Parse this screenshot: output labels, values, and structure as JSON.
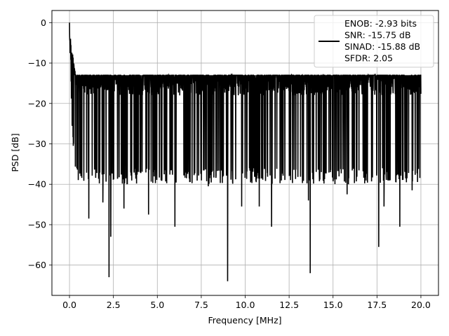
{
  "chart_data": {
    "type": "line",
    "title": "",
    "xlabel": "Frequency [MHz]",
    "ylabel": "PSD [dB]",
    "xlim": [
      -1.0,
      21.0
    ],
    "ylim": [
      -67.5,
      3.0
    ],
    "xticks": [
      0.0,
      2.5,
      5.0,
      7.5,
      10.0,
      12.5,
      15.0,
      17.5,
      20.0
    ],
    "xtick_labels": [
      "0.0",
      "2.5",
      "5.0",
      "7.5",
      "10.0",
      "12.5",
      "15.0",
      "17.5",
      "20.0"
    ],
    "yticks": [
      0,
      -10,
      -20,
      -30,
      -40,
      -50,
      -60
    ],
    "ytick_labels": [
      "0",
      "−10",
      "−20",
      "−30",
      "−40",
      "−50",
      "−60"
    ],
    "grid": true,
    "line_color": "#000000",
    "legend": {
      "placement": "top-right",
      "lines": [
        "ENOB: -2.93 bits",
        "SNR: -15.75 dB",
        "SINAD: -15.88 dB",
        "SFDR: 2.05"
      ]
    },
    "series": [
      {
        "x_range": [
          0.0,
          20.0
        ],
        "noise_floor_db": [
          -13,
          -36
        ],
        "peak": {
          "x": 0.0,
          "y": 0.0
        },
        "notable_dips": [
          {
            "x": 1.1,
            "y": -48.5
          },
          {
            "x": 1.9,
            "y": -44.5
          },
          {
            "x": 2.25,
            "y": -63.0
          },
          {
            "x": 2.35,
            "y": -53.0
          },
          {
            "x": 3.1,
            "y": -46.0
          },
          {
            "x": 4.5,
            "y": -47.5
          },
          {
            "x": 6.0,
            "y": -50.5
          },
          {
            "x": 7.9,
            "y": -40.5
          },
          {
            "x": 9.0,
            "y": -64.0
          },
          {
            "x": 9.8,
            "y": -45.5
          },
          {
            "x": 10.8,
            "y": -45.5
          },
          {
            "x": 11.5,
            "y": -50.5
          },
          {
            "x": 13.7,
            "y": -62.0
          },
          {
            "x": 13.6,
            "y": -44.0
          },
          {
            "x": 15.8,
            "y": -42.5
          },
          {
            "x": 17.6,
            "y": -55.5
          },
          {
            "x": 17.9,
            "y": -45.5
          },
          {
            "x": 18.8,
            "y": -50.5
          },
          {
            "x": 19.5,
            "y": -41.5
          }
        ]
      }
    ]
  }
}
